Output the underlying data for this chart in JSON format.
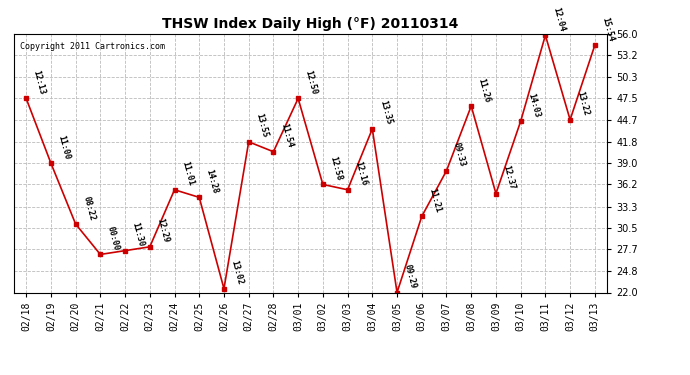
{
  "title": "THSW Index Daily High (°F) 20110314",
  "copyright": "Copyright 2011 Cartronics.com",
  "x_labels": [
    "02/18",
    "02/19",
    "02/20",
    "02/21",
    "02/22",
    "02/23",
    "02/24",
    "02/25",
    "02/26",
    "02/27",
    "02/28",
    "03/01",
    "03/02",
    "03/03",
    "03/04",
    "03/05",
    "03/06",
    "03/07",
    "03/08",
    "03/09",
    "03/10",
    "03/11",
    "03/12",
    "03/13"
  ],
  "y_values": [
    47.5,
    39.0,
    31.0,
    27.0,
    27.5,
    28.0,
    35.5,
    34.5,
    22.5,
    41.8,
    40.5,
    47.5,
    36.2,
    35.5,
    43.5,
    22.0,
    32.0,
    38.0,
    46.5,
    35.0,
    44.5,
    55.8,
    44.7,
    54.5
  ],
  "time_labels": [
    "12:13",
    "11:00",
    "08:22",
    "00:00",
    "11:30",
    "12:29",
    "11:01",
    "14:28",
    "13:02",
    "13:55",
    "11:54",
    "12:50",
    "12:58",
    "12:16",
    "13:35",
    "09:29",
    "11:21",
    "09:33",
    "11:26",
    "12:37",
    "14:03",
    "12:04",
    "13:22",
    "15:54"
  ],
  "ylim": [
    22.0,
    56.0
  ],
  "yticks": [
    22.0,
    24.8,
    27.7,
    30.5,
    33.3,
    36.2,
    39.0,
    41.8,
    44.7,
    47.5,
    50.3,
    53.2,
    56.0
  ],
  "line_color": "#cc0000",
  "marker_color": "#cc0000",
  "bg_color": "#ffffff",
  "grid_color": "#bbbbbb",
  "title_fontsize": 10,
  "tick_fontsize": 7,
  "annotation_fontsize": 6
}
